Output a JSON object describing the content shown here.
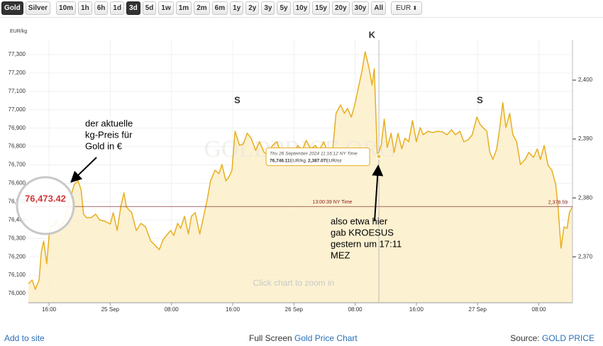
{
  "toolbar": {
    "metals": [
      "Gold",
      "Silver"
    ],
    "active_metal": 0,
    "ranges": [
      "10m",
      "1h",
      "6h",
      "1d",
      "3d",
      "5d",
      "1w",
      "1m",
      "2m",
      "6m",
      "1y",
      "2y",
      "3y",
      "5y",
      "10y",
      "15y",
      "20y",
      "30y",
      "All"
    ],
    "active_range": 4,
    "currency": "EUR"
  },
  "chart_data": {
    "type": "line",
    "y_unit_label": "EUR/kg",
    "x": [
      -2.7,
      -2.2,
      -1.8,
      -1.3,
      -1.0,
      -0.7,
      -0.3,
      0.1,
      0.6,
      1.0,
      1.5,
      2.0,
      2.4,
      2.9,
      3.3,
      3.8,
      4.2,
      4.5,
      4.9,
      5.5,
      6.1,
      6.6,
      7.3,
      8.0,
      8.4,
      8.9,
      9.4,
      9.8,
      10.1,
      10.8,
      11.4,
      12.0,
      12.6,
      13.3,
      13.8,
      14.4,
      14.9,
      15.5,
      15.9,
      16.3,
      16.8,
      17.2,
      17.7,
      18.2,
      18.6,
      19.1,
      19.7,
      20.2,
      20.7,
      21.1,
      21.7,
      22.2,
      22.6,
      23.1,
      23.5,
      23.9,
      24.3,
      24.9,
      25.4,
      25.9,
      26.4,
      27.0,
      27.5,
      28.1,
      28.6,
      29.2,
      29.8,
      30.3,
      30.9,
      31.4,
      32.0,
      32.5,
      33.1,
      33.6,
      34.2,
      34.8,
      35.3,
      35.9,
      36.4,
      37.0,
      37.5,
      38.1,
      38.6,
      39.0,
      39.5,
      39.9,
      40.4,
      40.9,
      41.3,
      41.8,
      42.2,
      42.5,
      42.9,
      43.4,
      43.8,
      44.2,
      44.7,
      45.1,
      45.6,
      46.1,
      46.5,
      47.0,
      47.5,
      48.0,
      48.5,
      48.9,
      49.5,
      50.1,
      50.8,
      51.4,
      52.0,
      52.6,
      53.1,
      53.7,
      54.2,
      54.8,
      55.3,
      55.9,
      56.3,
      56.7,
      57.2,
      57.6,
      58.0,
      58.5,
      58.9,
      59.3,
      59.7,
      60.2,
      60.6,
      61.1,
      61.6,
      62.2,
      62.7,
      63.3,
      63.8,
      64.2,
      64.7,
      65.2,
      65.7,
      66.2,
      66.5,
      66.9,
      67.3,
      67.7,
      68.0,
      68.4
    ],
    "series": [
      {
        "color": "#e8ae1f",
        "fill": "#fcefc9",
        "values": [
          76054,
          76073,
          76023,
          76073,
          76228,
          76285,
          76162,
          76363,
          76370,
          76401,
          76355,
          76401,
          76459,
          76536,
          76594,
          76613,
          76563,
          76432,
          76413,
          76413,
          76432,
          76401,
          76393,
          76378,
          76440,
          76343,
          76478,
          76548,
          76471,
          76440,
          76343,
          76382,
          76363,
          76285,
          76266,
          76239,
          76293,
          76324,
          76343,
          76316,
          76382,
          76355,
          76420,
          76324,
          76420,
          76440,
          76324,
          76420,
          76517,
          76613,
          76671,
          76652,
          76702,
          76613,
          76633,
          76671,
          76883,
          76806,
          76814,
          76872,
          76845,
          76779,
          76826,
          76768,
          76756,
          76806,
          76826,
          76756,
          76779,
          76787,
          76756,
          76806,
          76779,
          76833,
          76787,
          76806,
          76779,
          76826,
          76768,
          76756,
          76980,
          77026,
          76980,
          77007,
          76960,
          77018,
          77115,
          77211,
          77315,
          77231,
          77134,
          77223,
          76748,
          76806,
          76949,
          76795,
          76872,
          76768,
          76872,
          76787,
          76845,
          76826,
          76941,
          76826,
          76903,
          76864,
          76883,
          76876,
          76883,
          76880,
          76864,
          76891,
          76864,
          76883,
          76826,
          76837,
          76864,
          76960,
          76922,
          76903,
          76883,
          76768,
          76729,
          76787,
          76903,
          77038,
          76903,
          76980,
          76864,
          76826,
          76702,
          76729,
          76768,
          76741,
          76787,
          76729,
          76806,
          76698,
          76671,
          76594,
          76478,
          76247,
          76363,
          76355,
          76440,
          76473.42
        ]
      }
    ],
    "xlim": [
      -2.7,
      68.4
    ],
    "ylim": [
      75950,
      77350
    ],
    "y2lim": [
      2362.2,
      2405.9
    ],
    "xticks": [
      {
        "value": 0,
        "label": "16:00"
      },
      {
        "value": 8,
        "label": "25 Sep"
      },
      {
        "value": 16,
        "label": "08:00"
      },
      {
        "value": 24,
        "label": "16:00"
      },
      {
        "value": 32,
        "label": "26 Sep"
      },
      {
        "value": 40,
        "label": "08:00"
      },
      {
        "value": 48,
        "label": "16:00"
      },
      {
        "value": 56,
        "label": "27 Sep"
      },
      {
        "value": 64,
        "label": "08:00"
      }
    ],
    "yticks": [
      {
        "value": 76000,
        "label": "76,000"
      },
      {
        "value": 76100,
        "label": "76,100"
      },
      {
        "value": 76200,
        "label": "76,200"
      },
      {
        "value": 76300,
        "label": "76,300"
      },
      {
        "value": 76400,
        "label": "76,400"
      },
      {
        "value": 76500,
        "label": "76,500"
      },
      {
        "value": 76600,
        "label": "76,600"
      },
      {
        "value": 76700,
        "label": "76,700"
      },
      {
        "value": 76800,
        "label": "76,800"
      },
      {
        "value": 76900,
        "label": "76,900"
      },
      {
        "value": 77000,
        "label": "77,000"
      },
      {
        "value": 77100,
        "label": "77,100"
      },
      {
        "value": 77200,
        "label": "77,200"
      },
      {
        "value": 77300,
        "label": "77,300"
      }
    ],
    "y2ticks": [
      {
        "value": 2370,
        "label": "2,370"
      },
      {
        "value": 2380,
        "label": "2,380"
      },
      {
        "value": 2390,
        "label": "2,390"
      },
      {
        "value": 2400,
        "label": "2,400"
      }
    ],
    "grid": true,
    "watermark": "GOLDPRICE.ORG",
    "hint": "Click chart to zoom in",
    "event_markers": [
      {
        "label": "S",
        "x": 24.6
      },
      {
        "label": "K",
        "x": 42.2
      },
      {
        "label": "S",
        "x": 56.3
      }
    ],
    "tooltip": {
      "x": 43.1,
      "date": "Thu 26 September 2024 11:16:12 NY Time",
      "value": 76746.11,
      "value_label": "76,746.11",
      "unit": "EUR/kg",
      "value2": 2387.07,
      "value2_label": "2,387.07",
      "unit2": "EUR/oz"
    },
    "crosshair": {
      "time_label": "13:00:39 NY Time",
      "value": 76473.42,
      "value2": 2378.59,
      "value2_label": "2,378.59"
    },
    "magnifier": {
      "value": 76473.42,
      "label": "76,473.42"
    },
    "annotations": {
      "current": [
        "der aktuelle",
        "kg-Preis für",
        "Gold in €"
      ],
      "event": [
        "also etwa hier",
        "gab KROESUS",
        "gestern um 17:11",
        "MEZ"
      ]
    }
  },
  "footer": {
    "left": "Add to site",
    "center_prefix": "Full Screen",
    "center_link": "Gold Price Chart",
    "right_prefix": "Source:",
    "right_link": "GOLD PRICE"
  }
}
